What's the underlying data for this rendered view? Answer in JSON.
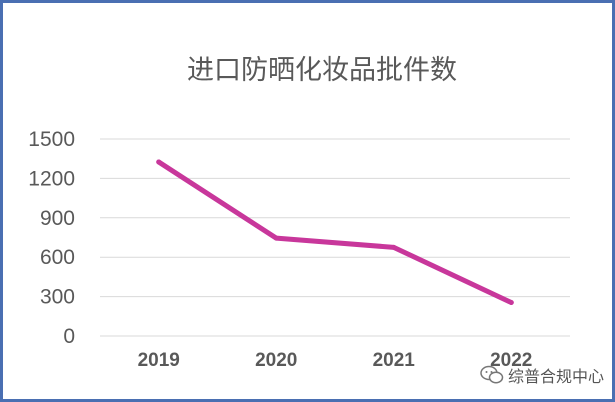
{
  "chart_data": {
    "type": "line",
    "title": "进口防晒化妆品批件数",
    "categories": [
      "2019",
      "2020",
      "2021",
      "2022"
    ],
    "series": [
      {
        "values": [
          1325,
          745,
          675,
          255
        ],
        "color": "#c8379b"
      }
    ],
    "ylim": [
      0,
      1500
    ],
    "yticks": [
      "0",
      "300",
      "600",
      "900",
      "1200",
      "1500"
    ],
    "grid": true,
    "legend": "none"
  },
  "watermark": {
    "text": "综普合规中心",
    "icon": "wechat-icon"
  }
}
